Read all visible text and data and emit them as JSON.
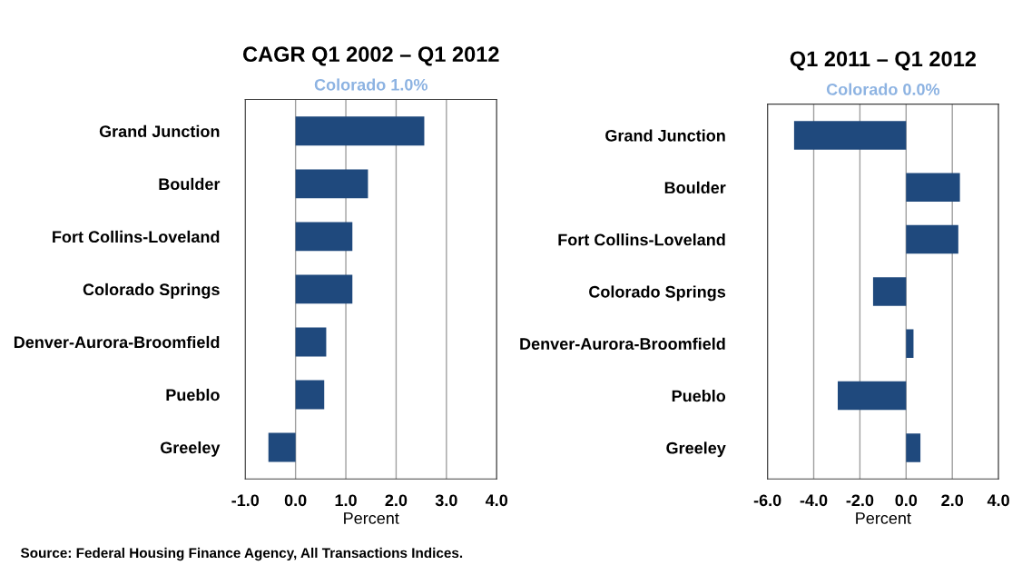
{
  "chart_data": [
    {
      "type": "bar",
      "orientation": "horizontal",
      "title": "CAGR Q1 2002 – Q1 2012",
      "xlabel": "Percent",
      "categories": [
        "Grand Junction",
        "Boulder",
        "Fort Collins-Loveland",
        "Colorado Springs",
        "Denver-Aurora-Broomfield",
        "Pueblo",
        "Greeley"
      ],
      "values": [
        2.56,
        1.44,
        1.13,
        1.13,
        0.61,
        0.57,
        -0.54
      ],
      "color": "#1f497d",
      "xlim": [
        -1,
        4
      ],
      "xticks": [
        {
          "value": -1,
          "label": "-1.0"
        },
        {
          "value": 0,
          "label": "0.0"
        },
        {
          "value": 1,
          "label": "1.0"
        },
        {
          "value": 2,
          "label": "2.0"
        },
        {
          "value": 3,
          "label": "3.0"
        },
        {
          "value": 4,
          "label": "4.0"
        }
      ],
      "grid": "x",
      "annotations": [
        "Colorado 1.0%",
        "Source: Federal Housing Finance Agency, All Transactions Indices."
      ]
    },
    {
      "type": "bar",
      "orientation": "horizontal",
      "title": "Q1 2011 – Q1 2012",
      "xlabel": "Percent",
      "categories": [
        "Grand Junction",
        "Boulder",
        "Fort Collins-Loveland",
        "Colorado Springs",
        "Denver-Aurora-Broomfield",
        "Pueblo",
        "Greeley"
      ],
      "values": [
        -4.85,
        2.33,
        2.26,
        -1.43,
        0.32,
        -2.96,
        0.62
      ],
      "color": "#1f497d",
      "xlim": [
        -6,
        4
      ],
      "xticks": [
        {
          "value": -6,
          "label": "-6.0"
        },
        {
          "value": -4,
          "label": "-4.0"
        },
        {
          "value": -2,
          "label": "-2.0"
        },
        {
          "value": 0,
          "label": "0.0"
        },
        {
          "value": 2,
          "label": "2.0"
        },
        {
          "value": 4,
          "label": "4.0"
        }
      ],
      "grid": "x",
      "annotations": [
        "Colorado 0.0%"
      ]
    }
  ]
}
